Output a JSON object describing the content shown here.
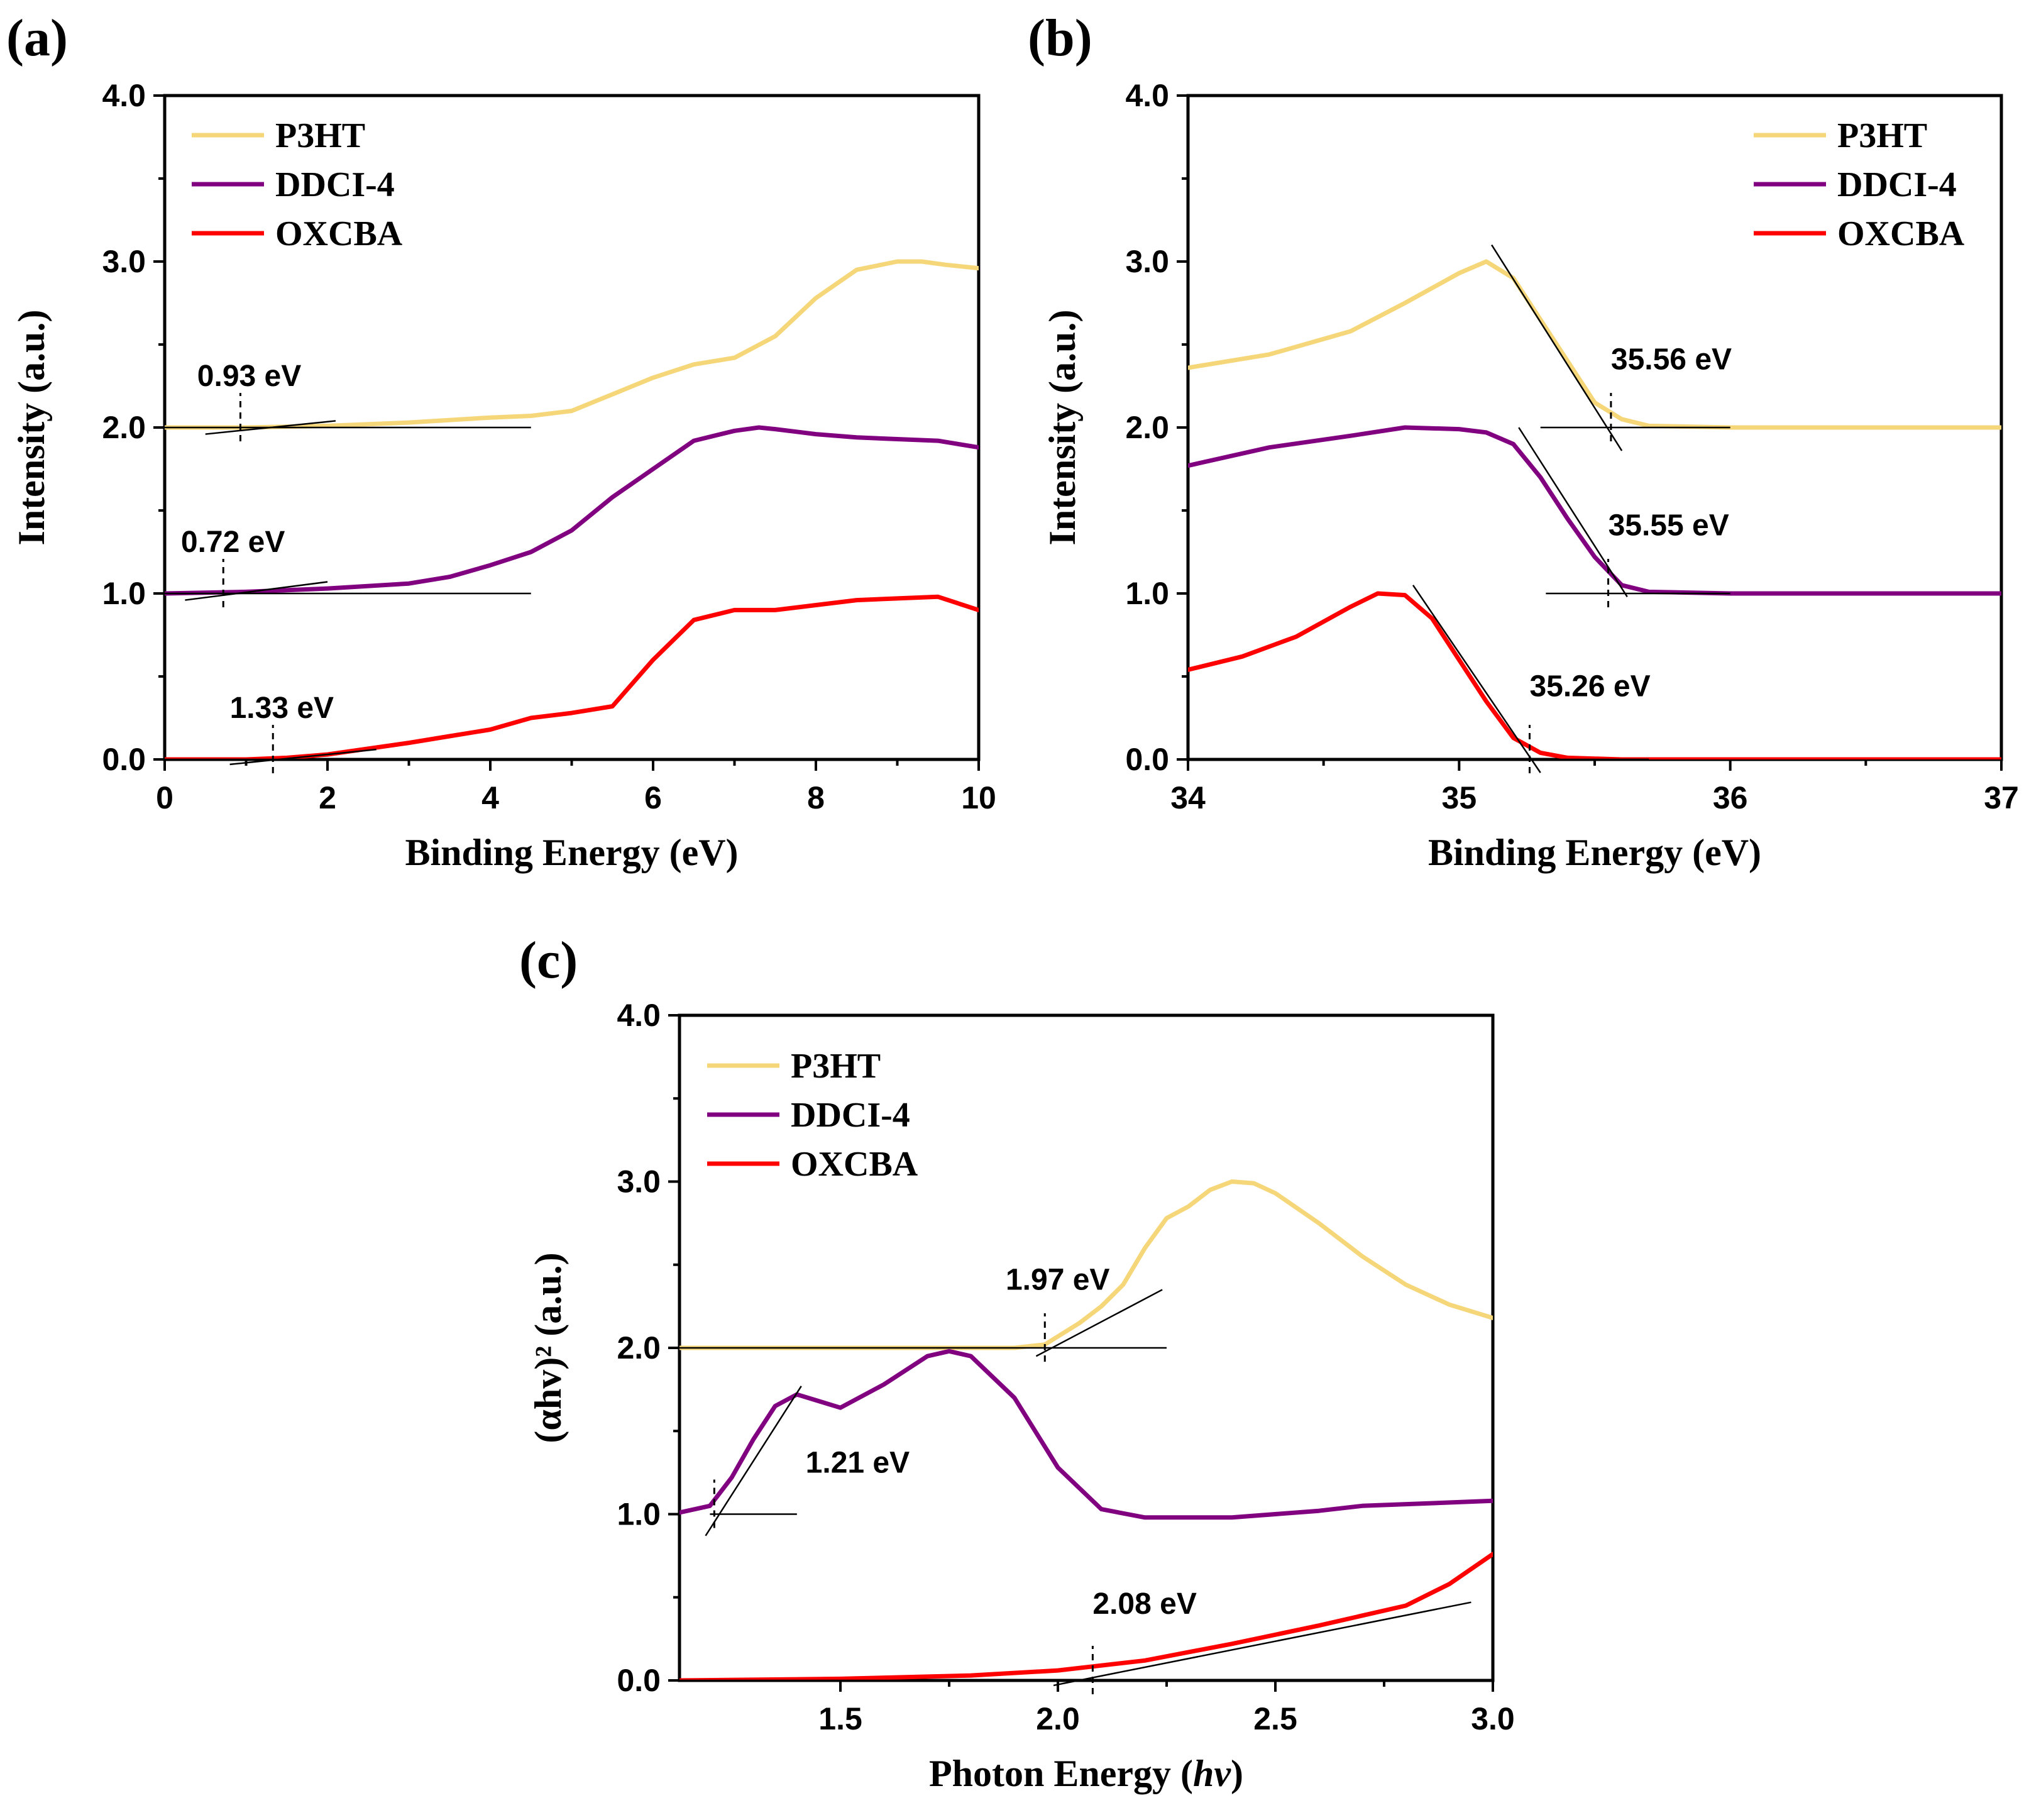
{
  "colors": {
    "P3HT": "#f5d77a",
    "DDCI-4": "#800080",
    "OXCBA": "#ff0000",
    "axis": "#000000"
  },
  "chart_data": [
    {
      "panel": "(a)",
      "type": "line",
      "xlabel": "Binding Energy (eV)",
      "ylabel": "Intensity (a.u.)",
      "xlim": [
        0,
        10
      ],
      "ylim": [
        0,
        4
      ],
      "xticks": [
        0,
        2,
        4,
        6,
        8,
        10
      ],
      "xtick_labels": [
        "0",
        "2",
        "4",
        "6",
        "8",
        "10"
      ],
      "yticks": [
        0,
        1,
        2,
        3,
        4
      ],
      "ytick_labels": [
        "0.0",
        "1.0",
        "2.0",
        "3.0",
        "4.0"
      ],
      "legend": {
        "position": "top-left",
        "entries": [
          "P3HT",
          "DDCI-4",
          "OXCBA"
        ]
      },
      "series": [
        {
          "name": "P3HT",
          "x": [
            0,
            1,
            2,
            3,
            4,
            4.5,
            5,
            5.5,
            6,
            6.5,
            7,
            7.5,
            8,
            8.5,
            9,
            9.3,
            9.6,
            10
          ],
          "values": [
            2.0,
            2.0,
            2.01,
            2.03,
            2.06,
            2.07,
            2.1,
            2.2,
            2.3,
            2.38,
            2.42,
            2.55,
            2.78,
            2.95,
            3.0,
            3.0,
            2.98,
            2.96
          ]
        },
        {
          "name": "DDCI-4",
          "x": [
            0,
            1,
            2,
            3,
            3.5,
            4,
            4.5,
            5,
            5.5,
            6,
            6.5,
            7,
            7.3,
            7.5,
            8,
            8.5,
            9,
            9.5,
            10
          ],
          "values": [
            1.0,
            1.01,
            1.03,
            1.06,
            1.1,
            1.17,
            1.25,
            1.38,
            1.58,
            1.75,
            1.92,
            1.98,
            2.0,
            1.99,
            1.96,
            1.94,
            1.93,
            1.92,
            1.88
          ]
        },
        {
          "name": "OXCBA",
          "x": [
            0,
            1,
            1.5,
            2,
            3,
            3.5,
            4,
            4.5,
            5,
            5.5,
            6,
            6.5,
            7,
            7.5,
            8,
            8.5,
            9,
            9.5,
            10
          ],
          "values": [
            0.0,
            0.0,
            0.01,
            0.03,
            0.1,
            0.14,
            0.18,
            0.25,
            0.28,
            0.32,
            0.6,
            0.84,
            0.9,
            0.9,
            0.93,
            0.96,
            0.97,
            0.98,
            0.9
          ]
        }
      ],
      "fit_lines": [
        {
          "x": [
            0,
            4.5
          ],
          "y": [
            2.0,
            2.0
          ]
        },
        {
          "x": [
            0.5,
            2.1
          ],
          "y": [
            1.96,
            2.04
          ]
        },
        {
          "x": [
            0,
            4.5
          ],
          "y": [
            1.0,
            1.0
          ]
        },
        {
          "x": [
            0.25,
            2.0
          ],
          "y": [
            0.96,
            1.07
          ]
        },
        {
          "x": [
            0,
            4.5
          ],
          "y": [
            0.0,
            0.0
          ]
        },
        {
          "x": [
            0.8,
            2.6
          ],
          "y": [
            -0.03,
            0.06
          ]
        }
      ],
      "annotations": [
        {
          "text": "0.93 eV",
          "x": 0.93,
          "y": 2.0,
          "label_x": 0.4,
          "label_y": 2.25
        },
        {
          "text": "0.72 eV",
          "x": 0.72,
          "y": 1.0,
          "label_x": 0.2,
          "label_y": 1.25
        },
        {
          "text": "1.33 eV",
          "x": 1.33,
          "y": 0.0,
          "label_x": 0.8,
          "label_y": 0.25
        }
      ]
    },
    {
      "panel": "(b)",
      "type": "line",
      "xlabel": "Binding Energy (eV)",
      "ylabel": "Intensity (a.u.)",
      "xlim": [
        34,
        37
      ],
      "ylim": [
        0,
        4
      ],
      "xticks": [
        34,
        35,
        36,
        37
      ],
      "xtick_labels": [
        "34",
        "35",
        "36",
        "37"
      ],
      "yticks": [
        0,
        1,
        2,
        3,
        4
      ],
      "ytick_labels": [
        "0.0",
        "1.0",
        "2.0",
        "3.0",
        "4.0"
      ],
      "legend": {
        "position": "top-right",
        "entries": [
          "P3HT",
          "DDCI-4",
          "OXCBA"
        ]
      },
      "series": [
        {
          "name": "P3HT",
          "x": [
            34,
            34.3,
            34.6,
            34.8,
            35.0,
            35.1,
            35.2,
            35.3,
            35.4,
            35.5,
            35.6,
            35.7,
            36,
            37
          ],
          "values": [
            2.36,
            2.44,
            2.58,
            2.75,
            2.93,
            3.0,
            2.9,
            2.65,
            2.4,
            2.15,
            2.05,
            2.01,
            2.0,
            2.0
          ]
        },
        {
          "name": "DDCI-4",
          "x": [
            34,
            34.3,
            34.6,
            34.8,
            35.0,
            35.1,
            35.2,
            35.3,
            35.4,
            35.5,
            35.6,
            35.7,
            36,
            37
          ],
          "values": [
            1.77,
            1.88,
            1.95,
            2.0,
            1.99,
            1.97,
            1.9,
            1.7,
            1.45,
            1.22,
            1.05,
            1.01,
            1.0,
            1.0
          ]
        },
        {
          "name": "OXCBA",
          "x": [
            34,
            34.2,
            34.4,
            34.6,
            34.7,
            34.8,
            34.9,
            35.0,
            35.1,
            35.2,
            35.3,
            35.4,
            35.6,
            37
          ],
          "values": [
            0.54,
            0.62,
            0.74,
            0.92,
            1.0,
            0.99,
            0.85,
            0.6,
            0.35,
            0.13,
            0.04,
            0.01,
            0.0,
            0.0
          ]
        }
      ],
      "fit_lines": [
        {
          "x": [
            35.12,
            35.6
          ],
          "y": [
            3.1,
            1.86
          ]
        },
        {
          "x": [
            35.3,
            36.0
          ],
          "y": [
            2.0,
            2.0
          ]
        },
        {
          "x": [
            35.22,
            35.62
          ],
          "y": [
            2.0,
            0.98
          ]
        },
        {
          "x": [
            35.32,
            36.0
          ],
          "y": [
            1.0,
            1.0
          ]
        },
        {
          "x": [
            34.83,
            35.3
          ],
          "y": [
            1.05,
            -0.08
          ]
        },
        {
          "x": [
            35.22,
            35.7
          ],
          "y": [
            0.0,
            0.0
          ]
        }
      ],
      "annotations": [
        {
          "text": "35.56 eV",
          "x": 35.56,
          "y": 2.0,
          "label_x": 35.56,
          "label_y": 2.35
        },
        {
          "text": "35.55 eV",
          "x": 35.55,
          "y": 1.0,
          "label_x": 35.55,
          "label_y": 1.35
        },
        {
          "text": "35.26 eV",
          "x": 35.26,
          "y": 0.0,
          "label_x": 35.26,
          "label_y": 0.38
        }
      ]
    },
    {
      "panel": "(c)",
      "type": "line",
      "xlabel": "Photon Energy (",
      "xlabel_italic": "hv",
      "xlabel_suffix": ")",
      "ylabel": "(αhv)² (a.u.)",
      "xlim": [
        1.13,
        3.0
      ],
      "ylim": [
        0,
        4
      ],
      "xticks": [
        1.5,
        2.0,
        2.5,
        3.0
      ],
      "xtick_labels": [
        "1.5",
        "2.0",
        "2.5",
        "3.0"
      ],
      "yticks": [
        0,
        1,
        2,
        3,
        4
      ],
      "ytick_labels": [
        "0.0",
        "1.0",
        "2.0",
        "3.0",
        "4.0"
      ],
      "legend": {
        "position": "top-left",
        "entries": [
          "P3HT",
          "DDCI-4",
          "OXCBA"
        ]
      },
      "series": [
        {
          "name": "P3HT",
          "x": [
            1.13,
            1.5,
            1.9,
            1.97,
            2.05,
            2.1,
            2.15,
            2.2,
            2.25,
            2.3,
            2.35,
            2.4,
            2.45,
            2.5,
            2.6,
            2.7,
            2.8,
            2.9,
            3.0
          ],
          "values": [
            2.0,
            2.0,
            2.0,
            2.02,
            2.15,
            2.25,
            2.38,
            2.6,
            2.78,
            2.85,
            2.95,
            3.0,
            2.99,
            2.93,
            2.75,
            2.55,
            2.38,
            2.26,
            2.18
          ]
        },
        {
          "name": "DDCI-4",
          "x": [
            1.13,
            1.2,
            1.25,
            1.3,
            1.35,
            1.4,
            1.45,
            1.5,
            1.6,
            1.7,
            1.75,
            1.8,
            1.9,
            2.0,
            2.1,
            2.2,
            2.4,
            2.6,
            2.7,
            3.0
          ],
          "values": [
            1.01,
            1.05,
            1.22,
            1.45,
            1.65,
            1.72,
            1.68,
            1.64,
            1.78,
            1.95,
            1.98,
            1.95,
            1.7,
            1.28,
            1.03,
            0.98,
            0.98,
            1.02,
            1.05,
            1.08
          ]
        },
        {
          "name": "OXCBA",
          "x": [
            1.13,
            1.5,
            1.8,
            2.0,
            2.2,
            2.4,
            2.6,
            2.8,
            2.9,
            3.0
          ],
          "values": [
            0.0,
            0.01,
            0.03,
            0.06,
            0.12,
            0.22,
            0.33,
            0.45,
            0.58,
            0.76
          ]
        }
      ],
      "fit_lines": [
        {
          "x": [
            1.13,
            2.25
          ],
          "y": [
            2.0,
            2.0
          ]
        },
        {
          "x": [
            1.95,
            2.24
          ],
          "y": [
            1.95,
            2.35
          ]
        },
        {
          "x": [
            1.2,
            1.4
          ],
          "y": [
            1.0,
            1.0
          ]
        },
        {
          "x": [
            1.19,
            1.41
          ],
          "y": [
            0.87,
            1.77
          ]
        },
        {
          "x": [
            1.13,
            2.5
          ],
          "y": [
            0.0,
            0.0
          ]
        },
        {
          "x": [
            1.99,
            2.95
          ],
          "y": [
            -0.03,
            0.47
          ]
        }
      ],
      "annotations": [
        {
          "text": "1.97 eV",
          "x": 1.97,
          "y": 2.0,
          "label_x": 1.88,
          "label_y": 2.35
        },
        {
          "text": "1.21 eV",
          "x": 1.21,
          "y": 1.0,
          "label_x": 1.42,
          "label_y": 1.25
        },
        {
          "text": "2.08 eV",
          "x": 2.08,
          "y": 0.0,
          "label_x": 2.08,
          "label_y": 0.4
        }
      ]
    }
  ]
}
